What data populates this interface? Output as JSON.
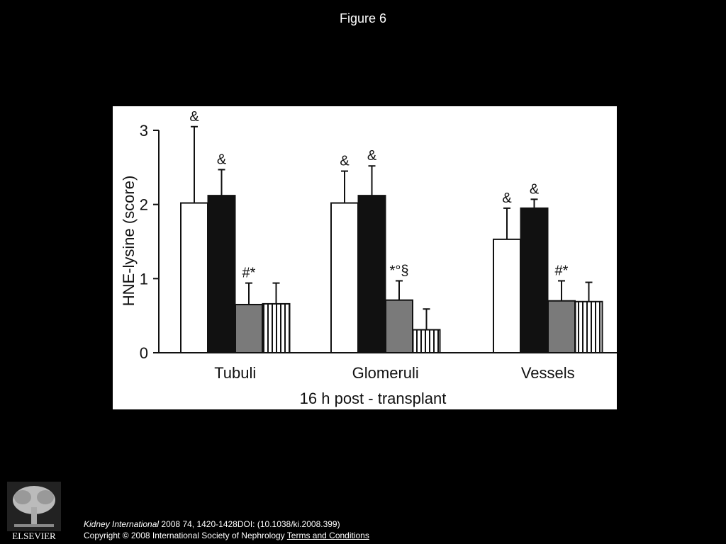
{
  "figure_title": "Figure 6",
  "chart_data": {
    "type": "bar",
    "ylabel": "HNE-lysine (score)",
    "xlabel": "16 h post - transplant",
    "ylim": [
      0,
      3
    ],
    "yticks": [
      "0",
      "1",
      "2",
      "3"
    ],
    "categories": [
      "Tubuli",
      "Glomeruli",
      "Vessels"
    ],
    "series": [
      {
        "fill": "white",
        "values": [
          2.02,
          2.02,
          1.53
        ],
        "errors": [
          1.03,
          0.43,
          0.42
        ],
        "annotations": [
          "&",
          "&",
          "&"
        ]
      },
      {
        "fill": "black",
        "values": [
          2.12,
          2.12,
          1.95
        ],
        "errors": [
          0.35,
          0.4,
          0.12
        ],
        "annotations": [
          "&",
          "&",
          "&"
        ]
      },
      {
        "fill": "gray",
        "values": [
          0.65,
          0.71,
          0.7
        ],
        "errors": [
          0.29,
          0.26,
          0.27
        ],
        "annotations": [
          "#*",
          "*°§",
          "#*"
        ]
      },
      {
        "fill": "striped",
        "values": [
          0.66,
          0.31,
          0.69
        ],
        "errors": [
          0.28,
          0.28,
          0.26
        ],
        "annotations": [
          "",
          "",
          ""
        ]
      }
    ],
    "legend": "none",
    "grid": false
  },
  "citation": {
    "journal": "Kidney International",
    "details": " 2008 74, 1420-1428DOI: (10.1038/ki.2008.399)",
    "copyright": "Copyright © 2008 International Society of Nephrology ",
    "terms_link": "Terms and Conditions"
  },
  "logo": {
    "text": "ELSEVIER",
    "icon": "elsevier-tree-icon"
  }
}
